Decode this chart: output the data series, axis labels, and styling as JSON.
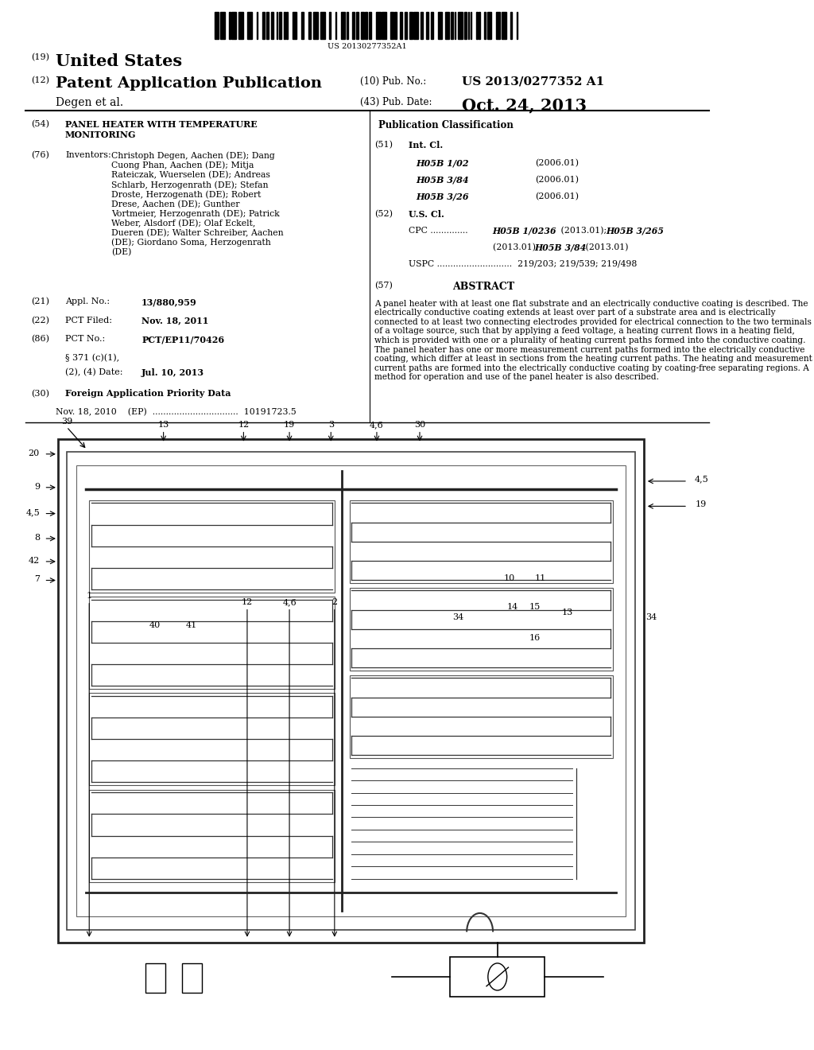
{
  "bg_color": "#ffffff",
  "barcode_text": "US 20130277352A1",
  "title_19": "(19)",
  "title_us": "United States",
  "title_12": "(12)",
  "title_pub": "Patent Application Publication",
  "author": "Degen et al.",
  "pub_no_label": "(10) Pub. No.:",
  "pub_no": "US 2013/0277352 A1",
  "pub_date_label": "(43) Pub. Date:",
  "pub_date": "Oct. 24, 2013",
  "section54_label": "(54)",
  "section54_title": "PANEL HEATER WITH TEMPERATURE\nMONITORING",
  "section76_label": "(76)",
  "section76_title": "Inventors:",
  "inventors": "Christoph Degen, Aachen (DE); Dang\nCuong Phan, Aachen (DE); Mitja\nRateiczak, Wuerselen (DE); Andreas\nSchlarb, Herzogenrath (DE); Stefan\nDroste, Herzogenath (DE); Robert\nDrese, Aachen (DE); Gunther\nVortmeier, Herzogenrath (DE); Patrick\nWeber, Alsdorf (DE); Olaf Eckelt,\nDueren (DE); Walter Schreiber, Aachen\n(DE); Giordano Soma, Herzogenrath\n(DE)",
  "s51_items": [
    [
      "H05B 1/02",
      "(2006.01)"
    ],
    [
      "H05B 3/84",
      "(2006.01)"
    ],
    [
      "H05B 3/26",
      "(2006.01)"
    ]
  ],
  "abstract": "A panel heater with at least one flat substrate and an electrically conductive coating is described. The electrically conductive coating extends at least over part of a substrate area and is electrically connected to at least two connecting electrodes provided for electrical connection to the two terminals of a voltage source, such that by applying a feed voltage, a heating current flows in a heating field, which is provided with one or a plurality of heating current paths formed into the conductive coating. The panel heater has one or more measurement current paths formed into the electrically conductive coating, which differ at least in sections from the heating current paths. The heating and measurement current paths are formed into the electrically conductive coating by coating-free separating regions. A method for operation and use of the panel heater is also described.",
  "pub_class_title": "Publication Classification"
}
